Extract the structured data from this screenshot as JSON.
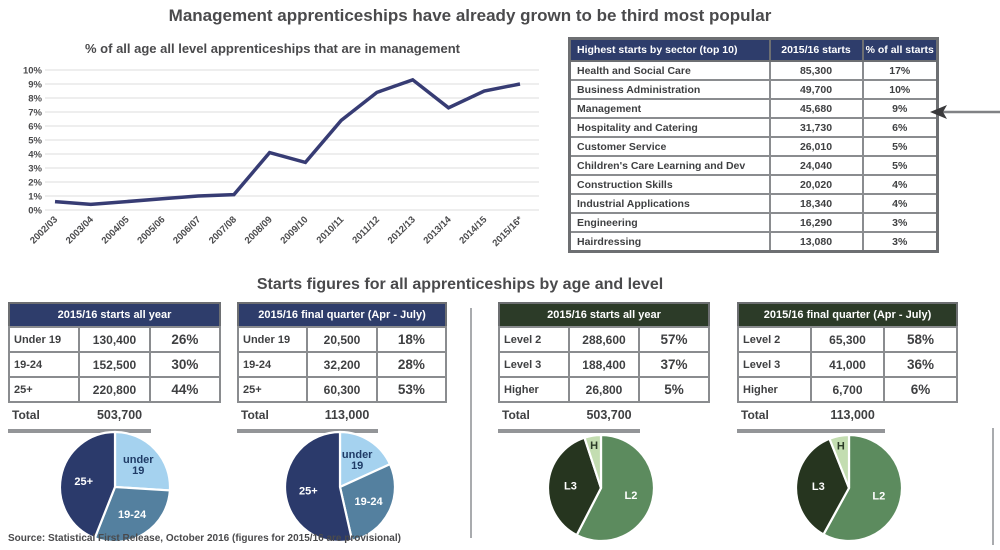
{
  "title": "Management apprenticeships have already grown to be third most popular",
  "section_heading": "Starts figures for all apprenticeships by age and level",
  "source": "Source: Statistical First Release, October 2016 (figures for 2015/16 are provisional)",
  "colors": {
    "navy": "#2e3d6b",
    "dark_green": "#2c3b28",
    "line": "#373c74",
    "grid": "#dcdcdc",
    "bar_gray": "#939598"
  },
  "chart_data": [
    {
      "type": "line",
      "title": "% of all age all level apprenticeships that are in management",
      "x": [
        "2002/03",
        "2003/04",
        "2004/05",
        "2005/06",
        "2006/07",
        "2007/08",
        "2008/09",
        "2009/10",
        "2010/11",
        "2011/12",
        "2012/13",
        "2013/14",
        "2014/15",
        "2015/16*"
      ],
      "values": [
        0.6,
        0.4,
        0.6,
        0.8,
        1.0,
        1.1,
        4.1,
        3.4,
        6.4,
        8.4,
        9.3,
        7.3,
        8.5,
        9.0
      ],
      "xlabel": "",
      "ylabel": "",
      "ylim": [
        0,
        10
      ],
      "ytick_step": 1,
      "ytick_suffix": "%",
      "grid": true,
      "line_color": "#373c74"
    },
    {
      "type": "table",
      "columns": [
        "Highest starts by sector (top 10)",
        "2015/16 starts",
        "% of all starts"
      ],
      "rows": [
        [
          "Health and Social Care",
          "85,300",
          "17%"
        ],
        [
          "Business Administration",
          "49,700",
          "10%"
        ],
        [
          "Management",
          "45,680",
          "9%"
        ],
        [
          "Hospitality and Catering",
          "31,730",
          "6%"
        ],
        [
          "Customer Service",
          "26,010",
          "5%"
        ],
        [
          "Children's Care Learning and Dev",
          "24,040",
          "5%"
        ],
        [
          "Construction Skills",
          "20,020",
          "4%"
        ],
        [
          "Industrial Applications",
          "18,340",
          "4%"
        ],
        [
          "Engineering",
          "16,290",
          "3%"
        ],
        [
          "Hairdressing",
          "13,080",
          "3%"
        ]
      ],
      "highlight_row": "Management"
    },
    {
      "type": "pie",
      "title": "2015/16 starts all year",
      "theme": "navy",
      "table_rows": [
        [
          "Under 19",
          "130,400",
          "26%"
        ],
        [
          "19-24",
          "152,500",
          "30%"
        ],
        [
          "25+",
          "220,800",
          "44%"
        ]
      ],
      "total_label": "Total",
      "total": "503,700",
      "labels": [
        "under 19",
        "19-24",
        "25+"
      ],
      "values": [
        26,
        30,
        44
      ],
      "colors": [
        "#a5d2ef",
        "#54809f",
        "#2b3a6b"
      ],
      "label_colors": [
        "#1f3b66",
        "#ffffff",
        "#ffffff"
      ]
    },
    {
      "type": "pie",
      "title": "2015/16 final quarter (Apr - July)",
      "theme": "navy",
      "table_rows": [
        [
          "Under 19",
          "20,500",
          "18%"
        ],
        [
          "19-24",
          "32,200",
          "28%"
        ],
        [
          "25+",
          "60,300",
          "53%"
        ]
      ],
      "total_label": "Total",
      "total": "113,000",
      "labels": [
        "under 19",
        "19-24",
        "25+"
      ],
      "values": [
        18,
        28,
        53
      ],
      "colors": [
        "#a5d2ef",
        "#54809f",
        "#2b3a6b"
      ],
      "label_colors": [
        "#1f3b66",
        "#ffffff",
        "#ffffff"
      ]
    },
    {
      "type": "pie",
      "title": "2015/16 starts all year",
      "theme": "green",
      "table_rows": [
        [
          "Level 2",
          "288,600",
          "57%"
        ],
        [
          "Level 3",
          "188,400",
          "37%"
        ],
        [
          "Higher",
          "26,800",
          "5%"
        ]
      ],
      "total_label": "Total",
      "total": "503,700",
      "labels": [
        "L2",
        "L3",
        "H"
      ],
      "values": [
        57,
        37,
        5
      ],
      "colors": [
        "#5c8b5e",
        "#26351f",
        "#c3ddb1"
      ],
      "label_colors": [
        "#ffffff",
        "#ffffff",
        "#2c3b28"
      ]
    },
    {
      "type": "pie",
      "title": "2015/16 final quarter (Apr - July)",
      "theme": "green",
      "table_rows": [
        [
          "Level 2",
          "65,300",
          "58%"
        ],
        [
          "Level 3",
          "41,000",
          "36%"
        ],
        [
          "Higher",
          "6,700",
          "6%"
        ]
      ],
      "total_label": "Total",
      "total": "113,000",
      "labels": [
        "L2",
        "L3",
        "H"
      ],
      "values": [
        58,
        36,
        6
      ],
      "colors": [
        "#5c8b5e",
        "#26351f",
        "#c3ddb1"
      ],
      "label_colors": [
        "#ffffff",
        "#ffffff",
        "#2c3b28"
      ]
    }
  ]
}
